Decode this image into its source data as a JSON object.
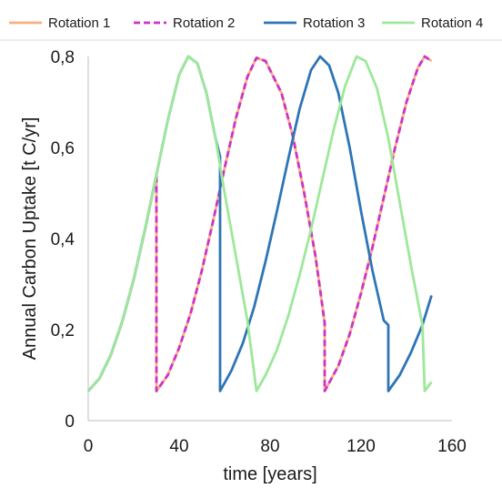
{
  "chart_data": {
    "type": "line",
    "title": "",
    "xlabel": "time [years]",
    "ylabel": "Annual Carbon Uptake [t C/yr]",
    "xlim": [
      0,
      160
    ],
    "ylim": [
      0,
      0.8
    ],
    "x_ticks": [
      {
        "value": 0,
        "label": "0"
      },
      {
        "value": 40,
        "label": "40"
      },
      {
        "value": 80,
        "label": "80"
      },
      {
        "value": 120,
        "label": "120"
      },
      {
        "value": 160,
        "label": "160"
      }
    ],
    "y_ticks": [
      {
        "value": 0,
        "label": "0"
      },
      {
        "value": 0.2,
        "label": "0,2"
      },
      {
        "value": 0.4,
        "label": "0,4"
      },
      {
        "value": 0.6,
        "label": "0,6"
      },
      {
        "value": 0.8,
        "label": "0,8"
      }
    ],
    "grid": false,
    "legend_position": "top",
    "series": [
      {
        "name": "Rotation 1",
        "color": "#f4b183",
        "dash": "solid",
        "points": [
          [
            0,
            0.065
          ],
          [
            5,
            0.093
          ],
          [
            10,
            0.145
          ],
          [
            15,
            0.218
          ],
          [
            20,
            0.31
          ],
          [
            25,
            0.42
          ],
          [
            30,
            0.54
          ],
          [
            30,
            0.065
          ],
          [
            35,
            0.1
          ],
          [
            40,
            0.16
          ],
          [
            45,
            0.235
          ],
          [
            50,
            0.33
          ],
          [
            55,
            0.44
          ],
          [
            60,
            0.555
          ],
          [
            65,
            0.665
          ],
          [
            70,
            0.755
          ],
          [
            74,
            0.797
          ],
          [
            78,
            0.79
          ],
          [
            85,
            0.72
          ],
          [
            90,
            0.625
          ],
          [
            95,
            0.5
          ],
          [
            100,
            0.36
          ],
          [
            104,
            0.215
          ],
          [
            104,
            0.065
          ],
          [
            110,
            0.12
          ],
          [
            115,
            0.19
          ],
          [
            120,
            0.28
          ],
          [
            125,
            0.38
          ],
          [
            130,
            0.49
          ],
          [
            135,
            0.6
          ],
          [
            140,
            0.7
          ],
          [
            145,
            0.775
          ],
          [
            148,
            0.8
          ],
          [
            151,
            0.79
          ]
        ]
      },
      {
        "name": "Rotation 2",
        "color": "#cc33cc",
        "dash": "dashed",
        "points": [
          [
            0,
            0.065
          ],
          [
            5,
            0.093
          ],
          [
            10,
            0.145
          ],
          [
            15,
            0.218
          ],
          [
            20,
            0.31
          ],
          [
            25,
            0.42
          ],
          [
            30,
            0.54
          ],
          [
            30,
            0.065
          ],
          [
            35,
            0.1
          ],
          [
            40,
            0.16
          ],
          [
            45,
            0.235
          ],
          [
            50,
            0.33
          ],
          [
            55,
            0.44
          ],
          [
            60,
            0.555
          ],
          [
            65,
            0.665
          ],
          [
            70,
            0.755
          ],
          [
            74,
            0.797
          ],
          [
            78,
            0.79
          ],
          [
            85,
            0.72
          ],
          [
            90,
            0.625
          ],
          [
            95,
            0.5
          ],
          [
            100,
            0.36
          ],
          [
            104,
            0.215
          ],
          [
            104,
            0.065
          ],
          [
            110,
            0.12
          ],
          [
            115,
            0.19
          ],
          [
            120,
            0.28
          ],
          [
            125,
            0.38
          ],
          [
            130,
            0.49
          ],
          [
            135,
            0.6
          ],
          [
            140,
            0.7
          ],
          [
            145,
            0.775
          ],
          [
            148,
            0.8
          ],
          [
            151,
            0.79
          ]
        ]
      },
      {
        "name": "Rotation 3",
        "color": "#2e75b6",
        "dash": "solid",
        "points": [
          [
            0,
            0.065
          ],
          [
            5,
            0.093
          ],
          [
            10,
            0.145
          ],
          [
            15,
            0.218
          ],
          [
            20,
            0.31
          ],
          [
            25,
            0.42
          ],
          [
            30,
            0.54
          ],
          [
            35,
            0.66
          ],
          [
            40,
            0.76
          ],
          [
            44,
            0.8
          ],
          [
            48,
            0.785
          ],
          [
            52,
            0.72
          ],
          [
            56,
            0.62
          ],
          [
            58,
            0.58
          ],
          [
            58,
            0.065
          ],
          [
            63,
            0.11
          ],
          [
            68,
            0.17
          ],
          [
            73,
            0.25
          ],
          [
            78,
            0.35
          ],
          [
            83,
            0.46
          ],
          [
            88,
            0.575
          ],
          [
            93,
            0.685
          ],
          [
            98,
            0.77
          ],
          [
            102,
            0.8
          ],
          [
            106,
            0.78
          ],
          [
            110,
            0.72
          ],
          [
            115,
            0.6
          ],
          [
            120,
            0.46
          ],
          [
            125,
            0.33
          ],
          [
            130,
            0.22
          ],
          [
            132,
            0.21
          ],
          [
            132,
            0.065
          ],
          [
            137,
            0.1
          ],
          [
            142,
            0.15
          ],
          [
            147,
            0.21
          ],
          [
            151,
            0.275
          ]
        ]
      },
      {
        "name": "Rotation 4",
        "color": "#9ee89a",
        "dash": "solid",
        "points": [
          [
            0,
            0.065
          ],
          [
            5,
            0.093
          ],
          [
            10,
            0.145
          ],
          [
            15,
            0.218
          ],
          [
            20,
            0.31
          ],
          [
            25,
            0.42
          ],
          [
            30,
            0.54
          ],
          [
            35,
            0.66
          ],
          [
            40,
            0.76
          ],
          [
            44,
            0.8
          ],
          [
            48,
            0.785
          ],
          [
            52,
            0.72
          ],
          [
            56,
            0.62
          ],
          [
            60,
            0.5
          ],
          [
            65,
            0.36
          ],
          [
            70,
            0.22
          ],
          [
            74,
            0.065
          ],
          [
            78,
            0.1
          ],
          [
            83,
            0.155
          ],
          [
            88,
            0.23
          ],
          [
            93,
            0.32
          ],
          [
            98,
            0.42
          ],
          [
            103,
            0.53
          ],
          [
            108,
            0.64
          ],
          [
            113,
            0.735
          ],
          [
            118,
            0.8
          ],
          [
            122,
            0.79
          ],
          [
            127,
            0.73
          ],
          [
            132,
            0.62
          ],
          [
            137,
            0.48
          ],
          [
            142,
            0.34
          ],
          [
            147,
            0.21
          ],
          [
            148,
            0.065
          ],
          [
            151,
            0.085
          ]
        ]
      }
    ]
  }
}
